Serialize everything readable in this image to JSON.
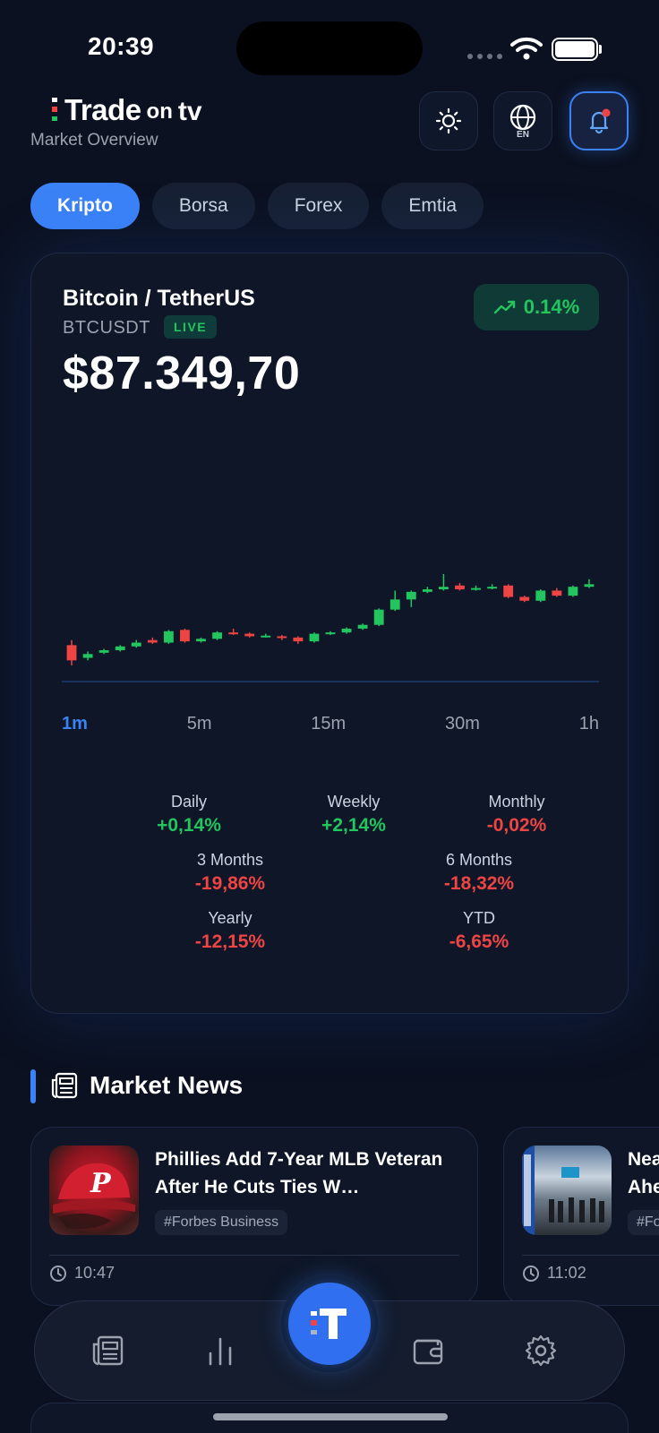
{
  "status": {
    "time": "20:39"
  },
  "header": {
    "logo_trade": "Trade",
    "logo_on": "on",
    "logo_tv": "tv",
    "subtitle": "Market Overview",
    "language": "EN"
  },
  "tabs": [
    {
      "label": "Kripto",
      "active": true
    },
    {
      "label": "Borsa",
      "active": false
    },
    {
      "label": "Forex",
      "active": false
    },
    {
      "label": "Emtia",
      "active": false
    }
  ],
  "market": {
    "pair": "Bitcoin / TetherUS",
    "symbol": "BTCUSDT",
    "live_label": "LIVE",
    "price": "$87.349,70",
    "change": "0.14%"
  },
  "timeframes": [
    "1m",
    "5m",
    "15m",
    "30m",
    "1h"
  ],
  "active_timeframe": "1m",
  "performance": [
    {
      "label": "Daily",
      "value": "+0,14%",
      "dir": "pos"
    },
    {
      "label": "Weekly",
      "value": "+2,14%",
      "dir": "pos"
    },
    {
      "label": "Monthly",
      "value": "-0,02%",
      "dir": "neg"
    },
    {
      "label": "3 Months",
      "value": "-19,86%",
      "dir": "neg"
    },
    {
      "label": "6 Months",
      "value": "-18,32%",
      "dir": "neg"
    },
    {
      "label": "Yearly",
      "value": "-12,15%",
      "dir": "neg"
    },
    {
      "label": "YTD",
      "value": "-6,65%",
      "dir": "neg"
    }
  ],
  "news": {
    "section_title": "Market News",
    "items": [
      {
        "headline": "Phillies Add 7-Year MLB Veteran After He Cuts Ties W…",
        "tag": "#Forbes Business",
        "time": "10:47"
      },
      {
        "headline": "Nea… Ahe…",
        "tag": "#Fo…",
        "time": "11:02"
      }
    ]
  },
  "colors": {
    "accent": "#3b82f6",
    "up": "#22c55e",
    "down": "#ef4444",
    "background": "#0b1120"
  },
  "icons": [
    "sun-icon",
    "globe-icon",
    "bell-icon",
    "trending-up-icon",
    "newspaper-icon",
    "clock-icon",
    "bar-chart-icon",
    "wallet-icon",
    "gear-icon"
  ],
  "chart_data": {
    "type": "candlestick",
    "candles": [
      {
        "o": 87300,
        "c": 87288,
        "h": 87304,
        "l": 87284
      },
      {
        "o": 87290,
        "c": 87293,
        "h": 87295,
        "l": 87288
      },
      {
        "o": 87294,
        "c": 87296,
        "h": 87297,
        "l": 87293
      },
      {
        "o": 87296,
        "c": 87299,
        "h": 87300,
        "l": 87295
      },
      {
        "o": 87299,
        "c": 87302,
        "h": 87304,
        "l": 87298
      },
      {
        "o": 87304,
        "c": 87302,
        "h": 87306,
        "l": 87301
      },
      {
        "o": 87302,
        "c": 87311,
        "h": 87312,
        "l": 87301
      },
      {
        "o": 87312,
        "c": 87303,
        "h": 87313,
        "l": 87302
      },
      {
        "o": 87303,
        "c": 87305,
        "h": 87306,
        "l": 87302
      },
      {
        "o": 87305,
        "c": 87310,
        "h": 87311,
        "l": 87304
      },
      {
        "o": 87310,
        "c": 87309,
        "h": 87313,
        "l": 87308
      },
      {
        "o": 87309,
        "c": 87307,
        "h": 87310,
        "l": 87306
      },
      {
        "o": 87307,
        "c": 87307.5,
        "h": 87309,
        "l": 87306
      },
      {
        "o": 87307,
        "c": 87306,
        "h": 87308,
        "l": 87304
      },
      {
        "o": 87306,
        "c": 87303,
        "h": 87307,
        "l": 87301
      },
      {
        "o": 87303,
        "c": 87309,
        "h": 87310,
        "l": 87302
      },
      {
        "o": 87309,
        "c": 87310,
        "h": 87311,
        "l": 87308
      },
      {
        "o": 87310,
        "c": 87313,
        "h": 87314,
        "l": 87309
      },
      {
        "o": 87313,
        "c": 87316,
        "h": 87317,
        "l": 87312
      },
      {
        "o": 87316,
        "c": 87328,
        "h": 87329,
        "l": 87315
      },
      {
        "o": 87328,
        "c": 87336,
        "h": 87343,
        "l": 87327
      },
      {
        "o": 87336,
        "c": 87342,
        "h": 87343,
        "l": 87330
      },
      {
        "o": 87342,
        "c": 87344,
        "h": 87346,
        "l": 87341
      },
      {
        "o": 87344,
        "c": 87346,
        "h": 87356,
        "l": 87343
      },
      {
        "o": 87347,
        "c": 87344,
        "h": 87349,
        "l": 87343
      },
      {
        "o": 87344,
        "c": 87345,
        "h": 87347,
        "l": 87343
      },
      {
        "o": 87345,
        "c": 87346,
        "h": 87348,
        "l": 87344
      },
      {
        "o": 87347,
        "c": 87338,
        "h": 87348,
        "l": 87337
      },
      {
        "o": 87338,
        "c": 87335,
        "h": 87339,
        "l": 87334
      },
      {
        "o": 87335,
        "c": 87343,
        "h": 87344,
        "l": 87334
      },
      {
        "o": 87343,
        "c": 87339,
        "h": 87345,
        "l": 87338
      },
      {
        "o": 87339,
        "c": 87346,
        "h": 87347,
        "l": 87338
      },
      {
        "o": 87346,
        "c": 87348,
        "h": 87352,
        "l": 87345
      }
    ]
  }
}
